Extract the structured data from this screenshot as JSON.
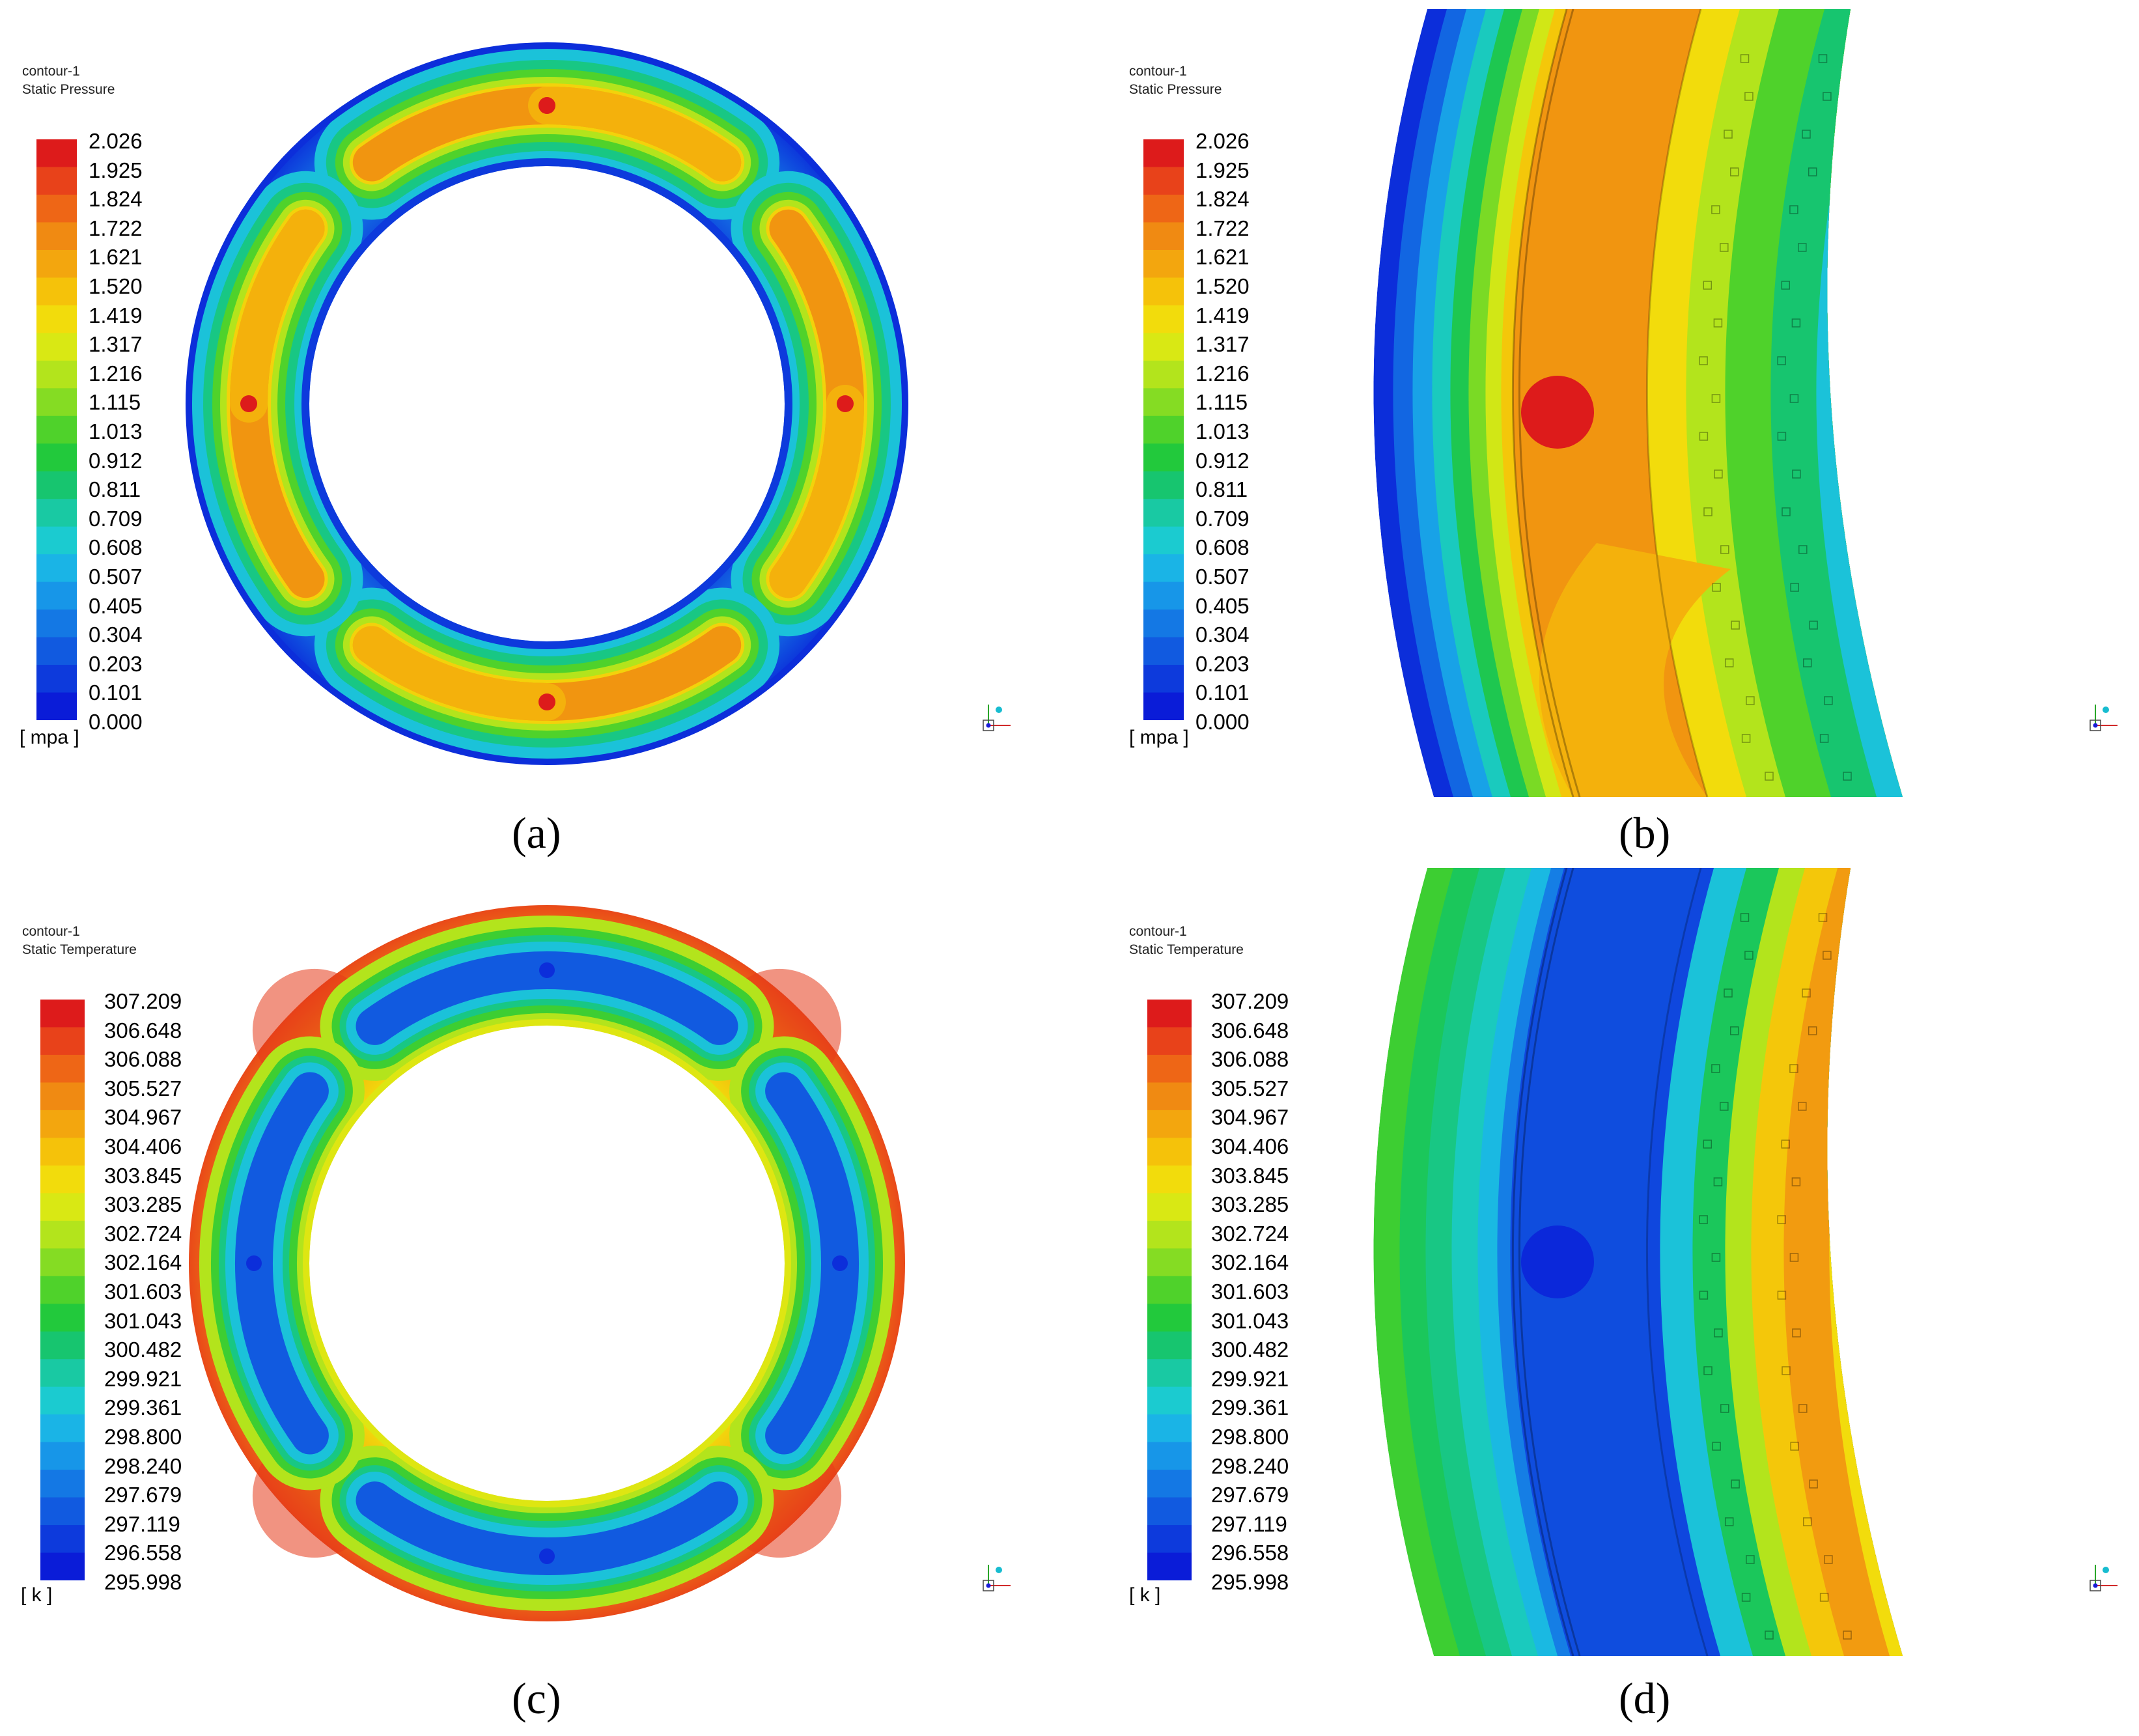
{
  "panels": [
    {
      "id": "a",
      "contour_name": "contour-1",
      "variable": "Static Pressure",
      "unit": "[ mpa ]",
      "caption": "(a)",
      "view": "full",
      "field": "pressure",
      "legend_labels": [
        "2.026",
        "1.925",
        "1.824",
        "1.722",
        "1.621",
        "1.520",
        "1.419",
        "1.317",
        "1.216",
        "1.115",
        "1.013",
        "0.912",
        "0.811",
        "0.709",
        "0.608",
        "0.507",
        "0.405",
        "0.304",
        "0.203",
        "0.101",
        "0.000"
      ]
    },
    {
      "id": "b",
      "contour_name": "contour-1",
      "variable": "Static Pressure",
      "unit": "[ mpa ]",
      "caption": "(b)",
      "view": "zoom",
      "field": "pressure",
      "legend_labels": [
        "2.026",
        "1.925",
        "1.824",
        "1.722",
        "1.621",
        "1.520",
        "1.419",
        "1.317",
        "1.216",
        "1.115",
        "1.013",
        "0.912",
        "0.811",
        "0.709",
        "0.608",
        "0.507",
        "0.405",
        "0.304",
        "0.203",
        "0.101",
        "0.000"
      ]
    },
    {
      "id": "c",
      "contour_name": "contour-1",
      "variable": "Static Temperature",
      "unit": "[ k ]",
      "caption": "(c)",
      "view": "full",
      "field": "temperature",
      "legend_labels": [
        "307.209",
        "306.648",
        "306.088",
        "305.527",
        "304.967",
        "304.406",
        "303.845",
        "303.285",
        "302.724",
        "302.164",
        "301.603",
        "301.043",
        "300.482",
        "299.921",
        "299.361",
        "298.800",
        "298.240",
        "297.679",
        "297.119",
        "296.558",
        "295.998"
      ]
    },
    {
      "id": "d",
      "contour_name": "contour-1",
      "variable": "Static Temperature",
      "unit": "[ k ]",
      "caption": "(d)",
      "view": "zoom",
      "field": "temperature",
      "legend_labels": [
        "307.209",
        "306.648",
        "306.088",
        "305.527",
        "304.967",
        "304.406",
        "303.845",
        "303.285",
        "302.724",
        "302.164",
        "301.603",
        "301.043",
        "300.482",
        "299.921",
        "299.361",
        "298.800",
        "298.240",
        "297.679",
        "297.119",
        "296.558",
        "295.998"
      ]
    }
  ],
  "colormap": [
    "#dd1b1b",
    "#e8421a",
    "#ee6616",
    "#f08a12",
    "#f3a60e",
    "#f5c20a",
    "#f2dc0c",
    "#d9e814",
    "#b3e41c",
    "#85dc23",
    "#4fd22b",
    "#22c93c",
    "#17c56f",
    "#19c9a3",
    "#1bcbd0",
    "#1ab4e6",
    "#1796e8",
    "#1478e4",
    "#115ae0",
    "#0d3adc",
    "#0a1cd8"
  ]
}
